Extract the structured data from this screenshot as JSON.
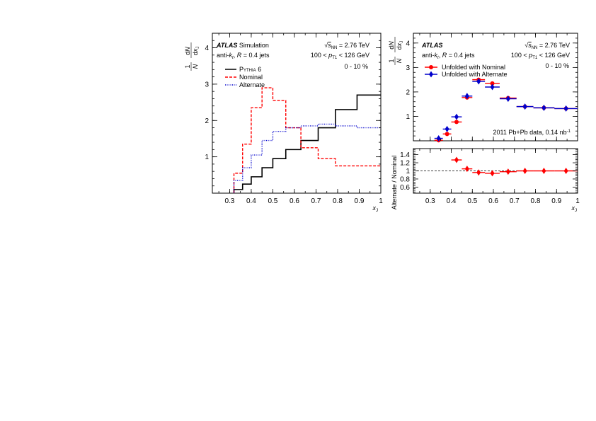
{
  "chart_data": [
    {
      "type": "line",
      "panel": "left",
      "xlabel": "x_J",
      "ylabel": "1/N dN/dx_J",
      "xlim": [
        0.22,
        1.0
      ],
      "ylim": [
        0,
        4.4
      ],
      "xticks": [
        0.3,
        0.4,
        0.5,
        0.6,
        0.7,
        0.8,
        0.9,
        1
      ],
      "yticks": [
        1,
        2,
        3,
        4
      ],
      "legend_position": "top-left",
      "annotations": {
        "atlas": "ATLAS",
        "atlas_suffix": "Simulation",
        "jets": "anti-kt, R = 0.4 jets",
        "energy": "√sNN = 2.76 TeV",
        "pt_range": "100 < pT1 < 126 GeV",
        "centrality": "0 - 10 %"
      },
      "bin_edges": [
        0.32,
        0.36,
        0.4,
        0.45,
        0.5,
        0.56,
        0.63,
        0.71,
        0.79,
        0.89,
        1.0
      ],
      "series": [
        {
          "name": "Pythia 6",
          "color": "#000000",
          "style": "solid",
          "values": [
            0.1,
            0.25,
            0.45,
            0.7,
            0.95,
            1.2,
            1.45,
            1.8,
            2.3,
            2.7
          ]
        },
        {
          "name": "Nominal",
          "color": "#ff0000",
          "style": "dashed",
          "values": [
            0.55,
            1.35,
            2.35,
            2.9,
            2.55,
            1.8,
            1.25,
            0.95,
            0.75,
            0.75
          ]
        },
        {
          "name": "Alternate",
          "color": "#0000cc",
          "style": "dotted",
          "values": [
            0.35,
            0.7,
            1.05,
            1.45,
            1.7,
            1.8,
            1.85,
            1.9,
            1.85,
            1.8
          ]
        }
      ]
    },
    {
      "type": "scatter",
      "panel": "right-top",
      "ylabel": "1/N dN/dx_J",
      "xlim": [
        0.22,
        1.0
      ],
      "ylim": [
        0,
        4.4
      ],
      "yticks": [
        1,
        2,
        3,
        4
      ],
      "legend_position": "top-left",
      "annotations": {
        "atlas": "ATLAS",
        "jets": "anti-kt, R = 0.4 jets",
        "energy": "√sNN = 2.76 TeV",
        "pt_range": "100 < pT1 < 126 GeV",
        "centrality": "0 - 10 %",
        "dataset": "2011 Pb+Pb data, 0.14 nb⁻¹"
      },
      "series": [
        {
          "name": "Unfolded with Nominal",
          "color": "#ff0000",
          "marker": "circle",
          "x": [
            0.34,
            0.38,
            0.425,
            0.475,
            0.53,
            0.595,
            0.67,
            0.75,
            0.84,
            0.945
          ],
          "xerr": [
            0.02,
            0.02,
            0.025,
            0.025,
            0.03,
            0.035,
            0.04,
            0.04,
            0.05,
            0.055
          ],
          "y": [
            0.02,
            0.28,
            0.77,
            1.77,
            2.5,
            2.35,
            1.75,
            1.4,
            1.35,
            1.32
          ]
        },
        {
          "name": "Unfolded with Alternate",
          "color": "#0000cc",
          "marker": "diamond",
          "x": [
            0.34,
            0.38,
            0.425,
            0.475,
            0.53,
            0.595,
            0.67,
            0.75,
            0.84,
            0.945
          ],
          "xerr": [
            0.02,
            0.02,
            0.025,
            0.025,
            0.03,
            0.035,
            0.04,
            0.04,
            0.05,
            0.055
          ],
          "y": [
            0.1,
            0.48,
            0.98,
            1.83,
            2.43,
            2.2,
            1.72,
            1.4,
            1.35,
            1.32
          ]
        }
      ]
    },
    {
      "type": "scatter",
      "panel": "right-bottom",
      "xlabel": "x_J",
      "ylabel": "Alternate / Nominal",
      "xlim": [
        0.22,
        1.0
      ],
      "ylim": [
        0.45,
        1.55
      ],
      "xticks": [
        0.3,
        0.4,
        0.5,
        0.6,
        0.7,
        0.8,
        0.9,
        1
      ],
      "yticks": [
        0.6,
        0.8,
        1,
        1.2,
        1.4
      ],
      "reference_line": 1,
      "series": [
        {
          "name": "",
          "color": "#ff0000",
          "marker": "diamond",
          "x": [
            0.425,
            0.475,
            0.53,
            0.595,
            0.67,
            0.75,
            0.84,
            0.945
          ],
          "xerr": [
            0.025,
            0.025,
            0.03,
            0.035,
            0.04,
            0.04,
            0.05,
            0.055
          ],
          "y": [
            1.27,
            1.05,
            0.96,
            0.94,
            0.98,
            1.0,
            1.0,
            1.0
          ]
        }
      ]
    }
  ]
}
